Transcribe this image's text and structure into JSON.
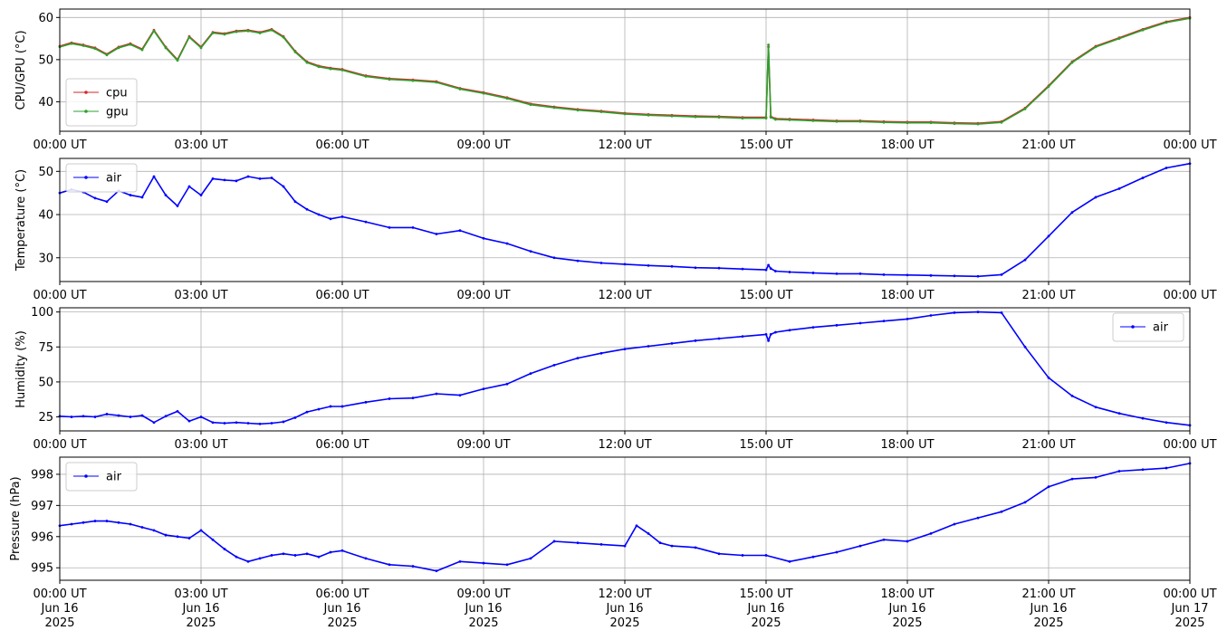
{
  "figure": {
    "x_tick_labels": [
      "00:00 UT",
      "03:00 UT",
      "06:00 UT",
      "09:00 UT",
      "12:00 UT",
      "15:00 UT",
      "18:00 UT",
      "21:00 UT",
      "00:00 UT"
    ],
    "x_date_labels": [
      "Jun 16",
      "Jun 16",
      "Jun 16",
      "Jun 16",
      "Jun 16",
      "Jun 16",
      "Jun 16",
      "Jun 16",
      "Jun 17"
    ],
    "x_year_labels": [
      "2025",
      "2025",
      "2025",
      "2025",
      "2025",
      "2025",
      "2025",
      "2025",
      "2025"
    ],
    "x_range": [
      "2025-06-16T00:00Z",
      "2025-06-17T00:00Z"
    ]
  },
  "chart_data": [
    {
      "type": "line",
      "ylabel": "CPU/GPU (°C)",
      "ylim": [
        33,
        62
      ],
      "yticks": [
        40,
        50,
        60
      ],
      "grid": true,
      "legend_placement": "lower-left",
      "x_hours": [
        0,
        0.25,
        0.5,
        0.75,
        1,
        1.25,
        1.5,
        1.75,
        2,
        2.25,
        2.5,
        2.75,
        3,
        3.25,
        3.5,
        3.75,
        4,
        4.25,
        4.5,
        4.75,
        5,
        5.25,
        5.5,
        5.75,
        6,
        6.5,
        7,
        7.5,
        8,
        8.5,
        9,
        9.5,
        10,
        10.5,
        11,
        11.5,
        12,
        12.5,
        13,
        13.5,
        14,
        14.5,
        15,
        15.05,
        15.1,
        15.2,
        15.5,
        16,
        16.5,
        17,
        17.5,
        18,
        18.5,
        19,
        19.5,
        20,
        20.5,
        21,
        21.5,
        22,
        22.5,
        23,
        23.5,
        24
      ],
      "series": [
        {
          "name": "cpu",
          "color": "#d62728",
          "values": [
            53.2,
            54,
            53.5,
            52.8,
            51.3,
            53,
            53.8,
            52.5,
            57,
            53,
            50,
            55.5,
            53,
            56.5,
            56.2,
            56.8,
            57,
            56.5,
            57.2,
            55.5,
            52,
            49.5,
            48.5,
            48,
            47.7,
            46.2,
            45.5,
            45.2,
            44.8,
            43.2,
            42.2,
            41,
            39.5,
            38.8,
            38.2,
            37.8,
            37.3,
            37,
            36.8,
            36.6,
            36.5,
            36.3,
            36.3,
            53,
            36.5,
            36,
            35.9,
            35.7,
            35.5,
            35.5,
            35.3,
            35.2,
            35.2,
            35,
            34.9,
            35.3,
            38.5,
            43.8,
            49.5,
            53.2,
            55.2,
            57.2,
            59,
            60
          ]
        },
        {
          "name": "gpu",
          "color": "#2ca02c",
          "values": [
            53,
            53.8,
            53.3,
            52.6,
            51.1,
            52.8,
            53.6,
            52.3,
            56.8,
            52.8,
            49.8,
            55.3,
            52.8,
            56.3,
            56,
            56.6,
            56.8,
            56.3,
            57,
            55.3,
            51.8,
            49.3,
            48.3,
            47.8,
            47.5,
            46,
            45.3,
            45,
            44.6,
            43,
            42,
            40.8,
            39.3,
            38.6,
            38,
            37.6,
            37.1,
            36.8,
            36.6,
            36.4,
            36.3,
            36.1,
            36.1,
            53.5,
            36.3,
            35.8,
            35.7,
            35.5,
            35.3,
            35.3,
            35.1,
            35,
            35,
            34.8,
            34.7,
            35.1,
            38.3,
            43.6,
            49.3,
            53,
            55,
            57,
            58.8,
            59.8
          ]
        }
      ]
    },
    {
      "type": "line",
      "ylabel": "Temperature (°C)",
      "ylim": [
        24.5,
        53
      ],
      "yticks": [
        30,
        40,
        50
      ],
      "grid": true,
      "legend_placement": "upper-left",
      "x_hours": [
        0,
        0.25,
        0.5,
        0.75,
        1,
        1.25,
        1.5,
        1.75,
        2,
        2.25,
        2.5,
        2.75,
        3,
        3.25,
        3.5,
        3.75,
        4,
        4.25,
        4.5,
        4.75,
        5,
        5.25,
        5.5,
        5.75,
        6,
        6.5,
        7,
        7.5,
        8,
        8.5,
        9,
        9.5,
        10,
        10.5,
        11,
        11.5,
        12,
        12.5,
        13,
        13.5,
        14,
        14.5,
        15,
        15.05,
        15.1,
        15.2,
        15.5,
        16,
        16.5,
        17,
        17.5,
        18,
        18.5,
        19,
        19.5,
        20,
        20.5,
        21,
        21.5,
        22,
        22.5,
        23,
        23.5,
        24
      ],
      "series": [
        {
          "name": "air",
          "color": "#0000ff",
          "values": [
            45,
            45.8,
            45.2,
            43.8,
            43,
            45.5,
            44.5,
            44,
            48.8,
            44.5,
            42,
            46.5,
            44.5,
            48.3,
            48,
            47.8,
            48.8,
            48.3,
            48.5,
            46.5,
            43,
            41.2,
            40,
            39,
            39.5,
            38.3,
            37,
            37,
            35.5,
            36.3,
            34.5,
            33.3,
            31.5,
            30,
            29.3,
            28.8,
            28.5,
            28.2,
            28,
            27.7,
            27.6,
            27.4,
            27.2,
            28.3,
            27.5,
            26.9,
            26.7,
            26.5,
            26.3,
            26.3,
            26.1,
            26,
            25.9,
            25.8,
            25.7,
            26.1,
            29.5,
            35,
            40.5,
            44,
            46,
            48.5,
            50.8,
            51.8
          ]
        }
      ]
    },
    {
      "type": "line",
      "ylabel": "Humidity (%)",
      "ylim": [
        15,
        103
      ],
      "yticks": [
        25,
        50,
        75,
        100
      ],
      "grid": true,
      "legend_placement": "upper-right",
      "x_hours": [
        0,
        0.25,
        0.5,
        0.75,
        1,
        1.25,
        1.5,
        1.75,
        2,
        2.25,
        2.5,
        2.75,
        3,
        3.25,
        3.5,
        3.75,
        4,
        4.25,
        4.5,
        4.75,
        5,
        5.25,
        5.5,
        5.75,
        6,
        6.5,
        7,
        7.5,
        8,
        8.5,
        9,
        9.5,
        10,
        10.5,
        11,
        11.5,
        12,
        12.5,
        13,
        13.5,
        14,
        14.5,
        15,
        15.05,
        15.1,
        15.2,
        15.5,
        16,
        16.5,
        17,
        17.5,
        18,
        18.5,
        19,
        19.5,
        20,
        20.5,
        21,
        21.5,
        22,
        22.5,
        23,
        23.5,
        24
      ],
      "series": [
        {
          "name": "air",
          "color": "#0000ff",
          "values": [
            25.5,
            25,
            25.5,
            25,
            27,
            26,
            25,
            26,
            21,
            25.5,
            29,
            22,
            25,
            21,
            20.5,
            21,
            20.5,
            20,
            20.5,
            21.5,
            24.5,
            28.5,
            30.5,
            32.5,
            32.5,
            35.5,
            38,
            38.5,
            41.5,
            40.5,
            45,
            48.5,
            56,
            62,
            67,
            70.5,
            73.5,
            75.5,
            77.5,
            79.5,
            81,
            82.5,
            84,
            79.5,
            84,
            85.5,
            87,
            89,
            90.5,
            92,
            93.5,
            95,
            97.5,
            99.5,
            100,
            99.5,
            75,
            53,
            40,
            32,
            27.5,
            24,
            21,
            19
          ]
        }
      ]
    },
    {
      "type": "line",
      "ylabel": "Pressure (hPa)",
      "ylim": [
        994.6,
        998.55
      ],
      "yticks": [
        995,
        996,
        997,
        998
      ],
      "grid": true,
      "legend_placement": "upper-left",
      "x_hours": [
        0,
        0.25,
        0.5,
        0.75,
        1,
        1.25,
        1.5,
        1.75,
        2,
        2.25,
        2.5,
        2.75,
        3,
        3.25,
        3.5,
        3.75,
        4,
        4.25,
        4.5,
        4.75,
        5,
        5.25,
        5.5,
        5.75,
        6,
        6.5,
        7,
        7.5,
        8,
        8.5,
        9,
        9.5,
        10,
        10.5,
        11,
        11.5,
        12,
        12.25,
        12.5,
        12.75,
        13,
        13.5,
        14,
        14.5,
        15,
        15.5,
        16,
        16.5,
        17,
        17.5,
        18,
        18.5,
        19,
        19.5,
        20,
        20.5,
        21,
        21.5,
        22,
        22.5,
        23,
        23.5,
        24
      ],
      "series": [
        {
          "name": "air",
          "color": "#0000ff",
          "values": [
            996.35,
            996.4,
            996.45,
            996.5,
            996.5,
            996.45,
            996.4,
            996.3,
            996.2,
            996.05,
            996,
            995.95,
            996.2,
            995.9,
            995.6,
            995.35,
            995.2,
            995.3,
            995.4,
            995.45,
            995.4,
            995.45,
            995.35,
            995.5,
            995.55,
            995.3,
            995.1,
            995.05,
            994.9,
            995.2,
            995.15,
            995.1,
            995.3,
            995.85,
            995.8,
            995.75,
            995.7,
            996.35,
            996.1,
            995.8,
            995.7,
            995.65,
            995.45,
            995.4,
            995.4,
            995.2,
            995.35,
            995.5,
            995.7,
            995.9,
            995.85,
            996.1,
            996.4,
            996.6,
            996.8,
            997.1,
            997.6,
            997.85,
            997.9,
            998.1,
            998.15,
            998.2,
            998.35
          ]
        }
      ]
    }
  ]
}
